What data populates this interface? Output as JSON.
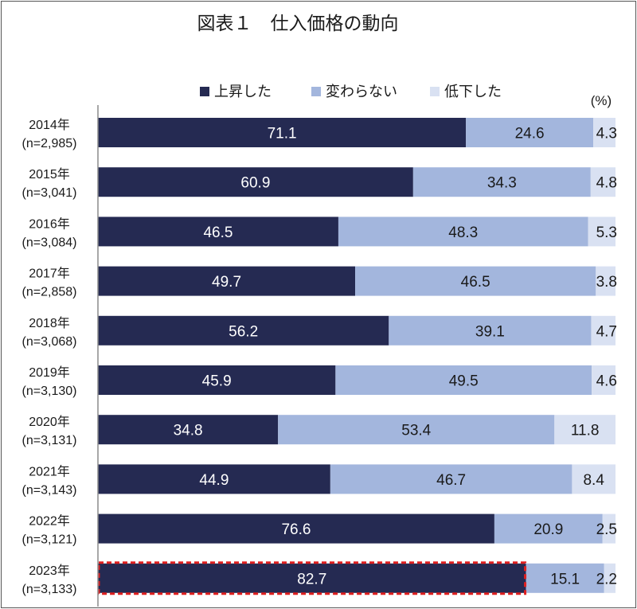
{
  "chart_data": {
    "type": "bar",
    "orientation": "horizontal",
    "stacked": true,
    "percent_stacked": true,
    "title": "図表１　仕入価格の動向",
    "unit_label": "(%)",
    "xlim": [
      0,
      100
    ],
    "grid": false,
    "legend_position": "top",
    "categories": [
      {
        "year": "2014年",
        "n": "(n=2,985)"
      },
      {
        "year": "2015年",
        "n": "(n=3,041)"
      },
      {
        "year": "2016年",
        "n": "(n=3,084)"
      },
      {
        "year": "2017年",
        "n": "(n=2,858)"
      },
      {
        "year": "2018年",
        "n": "(n=3,068)"
      },
      {
        "year": "2019年",
        "n": "(n=3,130)"
      },
      {
        "year": "2020年",
        "n": "(n=3,131)"
      },
      {
        "year": "2021年",
        "n": "(n=3,143)"
      },
      {
        "year": "2022年",
        "n": "(n=3,121)"
      },
      {
        "year": "2023年",
        "n": "(n=3,133)"
      }
    ],
    "series": [
      {
        "name": "上昇した",
        "color": "#252a52",
        "label_color": "#ffffff",
        "values": [
          71.1,
          60.9,
          46.5,
          49.7,
          56.2,
          45.9,
          34.8,
          44.9,
          76.6,
          82.7
        ]
      },
      {
        "name": "変わらない",
        "color": "#a3b6dd",
        "label_color": "#1a1a1a",
        "values": [
          24.6,
          34.3,
          48.3,
          46.5,
          39.1,
          49.5,
          53.4,
          46.7,
          20.9,
          15.1
        ]
      },
      {
        "name": "低下した",
        "color": "#d9e1f2",
        "label_color": "#1a1a1a",
        "values": [
          4.3,
          4.8,
          5.3,
          3.8,
          4.7,
          4.6,
          11.8,
          8.4,
          2.5,
          2.2
        ]
      }
    ],
    "highlight": {
      "category_index": 9,
      "series_index": 0,
      "color": "#e02020"
    }
  }
}
